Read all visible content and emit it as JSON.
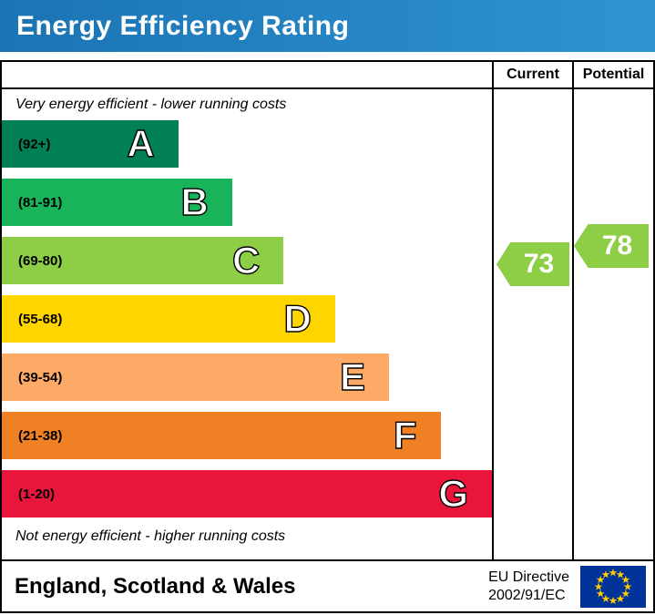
{
  "header": {
    "title": "Energy Efficiency Rating",
    "bg_color": "#1b74b4",
    "bg_color_light": "#2f93d2"
  },
  "chart_data": {
    "type": "bar",
    "title": "Energy Efficiency Rating",
    "columns": [
      "Current",
      "Potential"
    ],
    "top_note": "Very energy efficient - lower running costs",
    "bottom_note": "Not energy efficient - higher running costs",
    "bands": [
      {
        "letter": "A",
        "range": "(92+)",
        "color": "#008054",
        "width_pct": 36
      },
      {
        "letter": "B",
        "range": "(81-91)",
        "color": "#19b459",
        "width_pct": 47
      },
      {
        "letter": "C",
        "range": "(69-80)",
        "color": "#8dce46",
        "width_pct": 57.5
      },
      {
        "letter": "D",
        "range": "(55-68)",
        "color": "#ffd500",
        "width_pct": 68
      },
      {
        "letter": "E",
        "range": "(39-54)",
        "color": "#fcaa65",
        "width_pct": 79
      },
      {
        "letter": "F",
        "range": "(21-38)",
        "color": "#ef8023",
        "width_pct": 89.5
      },
      {
        "letter": "G",
        "range": "(1-20)",
        "color": "#e9153b",
        "width_pct": 100
      }
    ],
    "current": {
      "value": 73,
      "band": "C",
      "color": "#8dce46"
    },
    "potential": {
      "value": 78,
      "band": "C",
      "color": "#8dce46"
    }
  },
  "footer": {
    "region": "England, Scotland & Wales",
    "directive_line1": "EU Directive",
    "directive_line2": "2002/91/EC",
    "eu_flag_colors": {
      "field": "#003399",
      "stars": "#ffcc00"
    }
  }
}
